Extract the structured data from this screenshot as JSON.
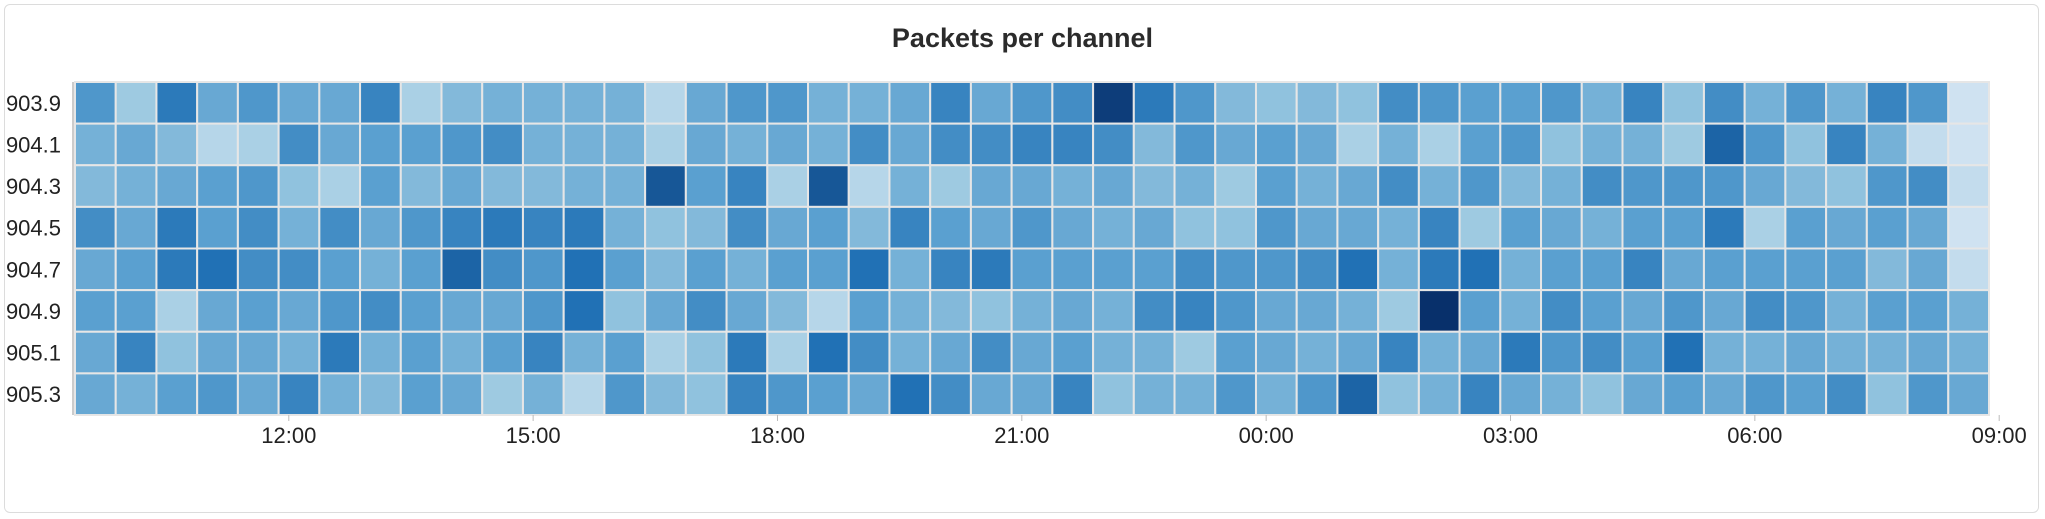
{
  "panel": {
    "title": "Packets per channel"
  },
  "chart_data": {
    "type": "heatmap",
    "title": "Packets per channel",
    "xlabel": "",
    "ylabel": "",
    "y_categories": [
      "903.9",
      "904.1",
      "904.3",
      "904.5",
      "904.7",
      "904.9",
      "905.1",
      "905.3"
    ],
    "x_tick_labels": [
      "12:00",
      "15:00",
      "18:00",
      "21:00",
      "00:00",
      "03:00",
      "06:00",
      "09:00"
    ],
    "color_scale": {
      "low": "#dbe8f5",
      "high": "#08306b"
    },
    "values": [
      [
        0.55,
        0.25,
        0.7,
        0.45,
        0.55,
        0.45,
        0.45,
        0.65,
        0.2,
        0.35,
        0.4,
        0.4,
        0.4,
        0.4,
        0.15,
        0.45,
        0.55,
        0.55,
        0.4,
        0.4,
        0.45,
        0.65,
        0.45,
        0.55,
        0.6,
        0.95,
        0.7,
        0.55,
        0.35,
        0.3,
        0.35,
        0.3,
        0.6,
        0.55,
        0.5,
        0.5,
        0.55,
        0.4,
        0.65,
        0.3,
        0.6,
        0.4,
        0.55,
        0.4,
        0.65,
        0.55,
        0.05
      ],
      [
        0.4,
        0.45,
        0.35,
        0.15,
        0.2,
        0.6,
        0.45,
        0.5,
        0.5,
        0.55,
        0.6,
        0.4,
        0.4,
        0.4,
        0.2,
        0.45,
        0.4,
        0.45,
        0.4,
        0.6,
        0.45,
        0.6,
        0.6,
        0.65,
        0.65,
        0.6,
        0.35,
        0.55,
        0.45,
        0.5,
        0.45,
        0.2,
        0.4,
        0.2,
        0.5,
        0.55,
        0.3,
        0.4,
        0.4,
        0.25,
        0.8,
        0.55,
        0.3,
        0.65,
        0.4,
        0.1,
        0.05
      ],
      [
        0.35,
        0.4,
        0.45,
        0.5,
        0.55,
        0.3,
        0.2,
        0.5,
        0.35,
        0.45,
        0.35,
        0.35,
        0.4,
        0.4,
        0.85,
        0.5,
        0.65,
        0.2,
        0.85,
        0.15,
        0.4,
        0.25,
        0.45,
        0.45,
        0.4,
        0.45,
        0.35,
        0.4,
        0.25,
        0.5,
        0.4,
        0.45,
        0.6,
        0.4,
        0.55,
        0.35,
        0.4,
        0.6,
        0.55,
        0.55,
        0.55,
        0.45,
        0.35,
        0.3,
        0.55,
        0.6,
        0.1
      ],
      [
        0.6,
        0.45,
        0.7,
        0.5,
        0.6,
        0.4,
        0.6,
        0.45,
        0.55,
        0.65,
        0.7,
        0.65,
        0.7,
        0.4,
        0.3,
        0.35,
        0.6,
        0.45,
        0.5,
        0.35,
        0.65,
        0.5,
        0.45,
        0.55,
        0.45,
        0.4,
        0.45,
        0.3,
        0.3,
        0.55,
        0.45,
        0.45,
        0.4,
        0.65,
        0.25,
        0.5,
        0.45,
        0.4,
        0.5,
        0.5,
        0.7,
        0.2,
        0.5,
        0.45,
        0.5,
        0.45,
        0.05
      ],
      [
        0.45,
        0.5,
        0.7,
        0.75,
        0.6,
        0.6,
        0.5,
        0.4,
        0.5,
        0.8,
        0.6,
        0.55,
        0.75,
        0.5,
        0.35,
        0.5,
        0.4,
        0.5,
        0.5,
        0.75,
        0.4,
        0.65,
        0.7,
        0.5,
        0.5,
        0.5,
        0.5,
        0.6,
        0.55,
        0.55,
        0.6,
        0.75,
        0.4,
        0.7,
        0.75,
        0.4,
        0.5,
        0.5,
        0.65,
        0.45,
        0.5,
        0.5,
        0.5,
        0.5,
        0.35,
        0.45,
        0.1
      ],
      [
        0.5,
        0.5,
        0.2,
        0.45,
        0.5,
        0.45,
        0.55,
        0.6,
        0.5,
        0.45,
        0.45,
        0.55,
        0.75,
        0.3,
        0.45,
        0.6,
        0.45,
        0.35,
        0.15,
        0.5,
        0.4,
        0.35,
        0.3,
        0.4,
        0.45,
        0.4,
        0.6,
        0.65,
        0.55,
        0.45,
        0.45,
        0.4,
        0.25,
        1.0,
        0.5,
        0.4,
        0.6,
        0.5,
        0.45,
        0.55,
        0.45,
        0.6,
        0.55,
        0.4,
        0.5,
        0.5,
        0.4
      ],
      [
        0.45,
        0.65,
        0.3,
        0.45,
        0.45,
        0.4,
        0.7,
        0.4,
        0.5,
        0.4,
        0.5,
        0.65,
        0.4,
        0.5,
        0.2,
        0.3,
        0.7,
        0.2,
        0.75,
        0.6,
        0.4,
        0.45,
        0.6,
        0.45,
        0.5,
        0.4,
        0.4,
        0.25,
        0.5,
        0.45,
        0.4,
        0.45,
        0.65,
        0.4,
        0.45,
        0.7,
        0.55,
        0.6,
        0.5,
        0.75,
        0.4,
        0.4,
        0.45,
        0.4,
        0.4,
        0.45,
        0.4
      ],
      [
        0.45,
        0.4,
        0.5,
        0.55,
        0.45,
        0.65,
        0.4,
        0.35,
        0.5,
        0.45,
        0.25,
        0.4,
        0.15,
        0.55,
        0.35,
        0.3,
        0.65,
        0.55,
        0.5,
        0.45,
        0.75,
        0.6,
        0.45,
        0.45,
        0.65,
        0.3,
        0.4,
        0.4,
        0.55,
        0.4,
        0.55,
        0.8,
        0.3,
        0.4,
        0.65,
        0.45,
        0.4,
        0.3,
        0.45,
        0.5,
        0.45,
        0.55,
        0.5,
        0.6,
        0.3,
        0.55,
        0.45
      ]
    ]
  }
}
